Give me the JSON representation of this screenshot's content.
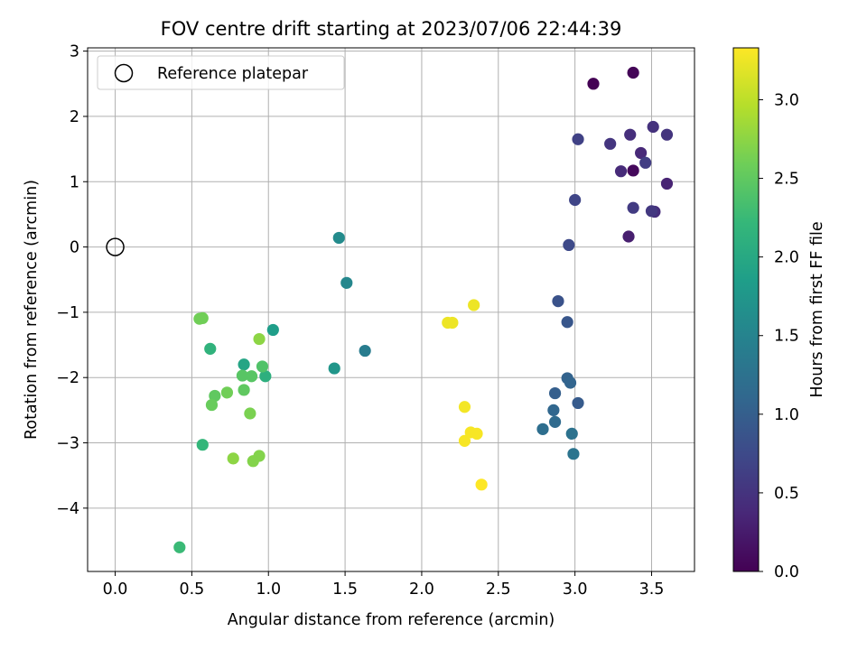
{
  "chart_data": {
    "type": "scatter",
    "title": "FOV centre drift starting at 2023/07/06 22:44:39",
    "xlabel": "Angular distance from reference (arcmin)",
    "ylabel": "Rotation from reference (arcmin)",
    "xlim": [
      -0.18,
      3.78
    ],
    "ylim": [
      -4.97,
      3.05
    ],
    "xticks": [
      0.0,
      0.5,
      1.0,
      1.5,
      2.0,
      2.5,
      3.0,
      3.5
    ],
    "xtick_labels": [
      "0.0",
      "0.5",
      "1.0",
      "1.5",
      "2.0",
      "2.5",
      "3.0",
      "3.5"
    ],
    "yticks": [
      -4,
      -3,
      -2,
      -1,
      0,
      1,
      2,
      3
    ],
    "ytick_labels": [
      "−4",
      "−3",
      "−2",
      "−1",
      "0",
      "1",
      "2",
      "3"
    ],
    "grid": true,
    "legend": {
      "placement": "top-left",
      "entries": [
        "Reference platepar"
      ]
    },
    "reference_point": {
      "x": 0.0,
      "y": 0.0,
      "label": "Reference platepar"
    },
    "colorbar": {
      "label": "Hours from first FF file",
      "range": [
        0.0,
        3.33
      ],
      "ticks": [
        0.0,
        0.5,
        1.0,
        1.5,
        2.0,
        2.5,
        3.0
      ],
      "tick_labels": [
        "0.0",
        "0.5",
        "1.0",
        "1.5",
        "2.0",
        "2.5",
        "3.0"
      ],
      "colormap": "viridis"
    },
    "series": [
      {
        "points": [
          {
            "x": 3.12,
            "y": 2.5,
            "c": 0.0
          },
          {
            "x": 3.38,
            "y": 2.67,
            "c": 0.03
          },
          {
            "x": 3.38,
            "y": 1.17,
            "c": 0.08
          },
          {
            "x": 3.35,
            "y": 0.16,
            "c": 0.28
          },
          {
            "x": 3.6,
            "y": 0.97,
            "c": 0.33
          },
          {
            "x": 3.43,
            "y": 1.44,
            "c": 0.38
          },
          {
            "x": 3.3,
            "y": 1.16,
            "c": 0.4
          },
          {
            "x": 3.52,
            "y": 0.54,
            "c": 0.43
          },
          {
            "x": 3.36,
            "y": 1.72,
            "c": 0.45
          },
          {
            "x": 3.51,
            "y": 1.84,
            "c": 0.48
          },
          {
            "x": 3.6,
            "y": 1.72,
            "c": 0.5
          },
          {
            "x": 3.23,
            "y": 1.58,
            "c": 0.52
          },
          {
            "x": 3.5,
            "y": 0.55,
            "c": 0.55
          },
          {
            "x": 3.38,
            "y": 0.6,
            "c": 0.58
          },
          {
            "x": 3.46,
            "y": 1.29,
            "c": 0.6
          },
          {
            "x": 3.02,
            "y": 1.65,
            "c": 0.65
          },
          {
            "x": 3.0,
            "y": 0.72,
            "c": 0.7
          },
          {
            "x": 2.96,
            "y": 0.03,
            "c": 0.75
          },
          {
            "x": 2.89,
            "y": -0.83,
            "c": 0.85
          },
          {
            "x": 2.95,
            "y": -1.15,
            "c": 0.9
          },
          {
            "x": 3.02,
            "y": -2.39,
            "c": 0.95
          },
          {
            "x": 2.87,
            "y": -2.24,
            "c": 1.0
          },
          {
            "x": 2.95,
            "y": -2.01,
            "c": 1.05
          },
          {
            "x": 2.97,
            "y": -2.08,
            "c": 1.08
          },
          {
            "x": 2.86,
            "y": -2.5,
            "c": 1.1
          },
          {
            "x": 2.87,
            "y": -2.68,
            "c": 1.15
          },
          {
            "x": 2.79,
            "y": -2.79,
            "c": 1.2
          },
          {
            "x": 2.98,
            "y": -2.86,
            "c": 1.25
          },
          {
            "x": 2.99,
            "y": -3.17,
            "c": 1.28
          },
          {
            "x": 1.63,
            "y": -1.59,
            "c": 1.4
          },
          {
            "x": 1.51,
            "y": -0.55,
            "c": 1.55
          },
          {
            "x": 1.46,
            "y": 0.14,
            "c": 1.6
          },
          {
            "x": 1.43,
            "y": -1.86,
            "c": 1.75
          },
          {
            "x": 1.03,
            "y": -1.27,
            "c": 1.85
          },
          {
            "x": 0.84,
            "y": -1.8,
            "c": 1.95
          },
          {
            "x": 0.98,
            "y": -1.98,
            "c": 2.1
          },
          {
            "x": 0.62,
            "y": -1.56,
            "c": 2.15
          },
          {
            "x": 0.57,
            "y": -3.03,
            "c": 2.2
          },
          {
            "x": 0.42,
            "y": -4.6,
            "c": 2.25
          },
          {
            "x": 0.96,
            "y": -1.83,
            "c": 2.4
          },
          {
            "x": 0.89,
            "y": -1.98,
            "c": 2.45
          },
          {
            "x": 0.83,
            "y": -1.97,
            "c": 2.45
          },
          {
            "x": 0.84,
            "y": -2.19,
            "c": 2.5
          },
          {
            "x": 0.65,
            "y": -2.28,
            "c": 2.5
          },
          {
            "x": 0.63,
            "y": -2.42,
            "c": 2.55
          },
          {
            "x": 0.73,
            "y": -2.23,
            "c": 2.6
          },
          {
            "x": 0.55,
            "y": -1.1,
            "c": 2.6
          },
          {
            "x": 0.57,
            "y": -1.09,
            "c": 2.6
          },
          {
            "x": 0.88,
            "y": -2.55,
            "c": 2.65
          },
          {
            "x": 0.94,
            "y": -3.2,
            "c": 2.7
          },
          {
            "x": 0.9,
            "y": -3.28,
            "c": 2.7
          },
          {
            "x": 0.77,
            "y": -3.24,
            "c": 2.75
          },
          {
            "x": 0.94,
            "y": -1.41,
            "c": 2.75
          },
          {
            "x": 2.17,
            "y": -1.16,
            "c": 3.25
          },
          {
            "x": 2.2,
            "y": -1.16,
            "c": 3.25
          },
          {
            "x": 2.34,
            "y": -0.89,
            "c": 3.25
          },
          {
            "x": 2.28,
            "y": -2.45,
            "c": 3.28
          },
          {
            "x": 2.28,
            "y": -2.97,
            "c": 3.3
          },
          {
            "x": 2.32,
            "y": -2.84,
            "c": 3.3
          },
          {
            "x": 2.36,
            "y": -2.86,
            "c": 3.3
          },
          {
            "x": 2.39,
            "y": -3.64,
            "c": 3.33
          }
        ]
      }
    ]
  }
}
